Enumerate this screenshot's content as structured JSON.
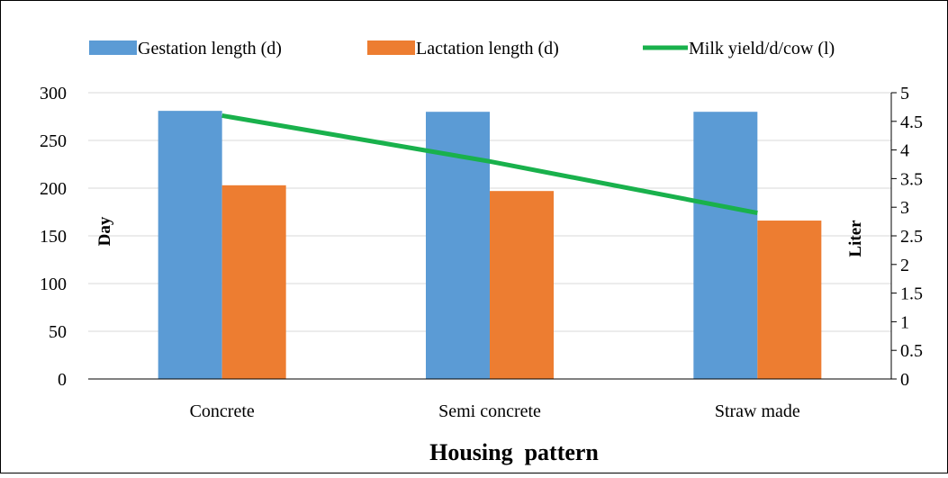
{
  "chart_data": {
    "type": "bar",
    "title": "",
    "xlabel": "Housing  pattern",
    "ylabel": "Day",
    "y2label": "Liter",
    "categories": [
      "Concrete",
      "Semi concrete",
      "Straw made"
    ],
    "ylim": [
      0,
      300
    ],
    "yticks": [
      "0",
      "50",
      "100",
      "150",
      "200",
      "250",
      "300"
    ],
    "y2lim": [
      0,
      5
    ],
    "y2ticks": [
      "0",
      "0.5",
      "1",
      "1.5",
      "2",
      "2.5",
      "3",
      "3.5",
      "4",
      "4.5",
      "5"
    ],
    "grid": true,
    "legend_position": "top",
    "series": [
      {
        "name": "Gestation length (d)",
        "type": "bar",
        "axis": "left",
        "color": "#5B9BD5",
        "values": [
          281,
          280,
          280
        ]
      },
      {
        "name": "Lactation length (d)",
        "type": "bar",
        "axis": "left",
        "color": "#ED7D31",
        "values": [
          203,
          197,
          166
        ]
      },
      {
        "name": "Milk yield/d/cow (l)",
        "type": "line",
        "axis": "right",
        "color": "#19B14C",
        "values": [
          4.6,
          3.8,
          2.9
        ]
      }
    ]
  }
}
